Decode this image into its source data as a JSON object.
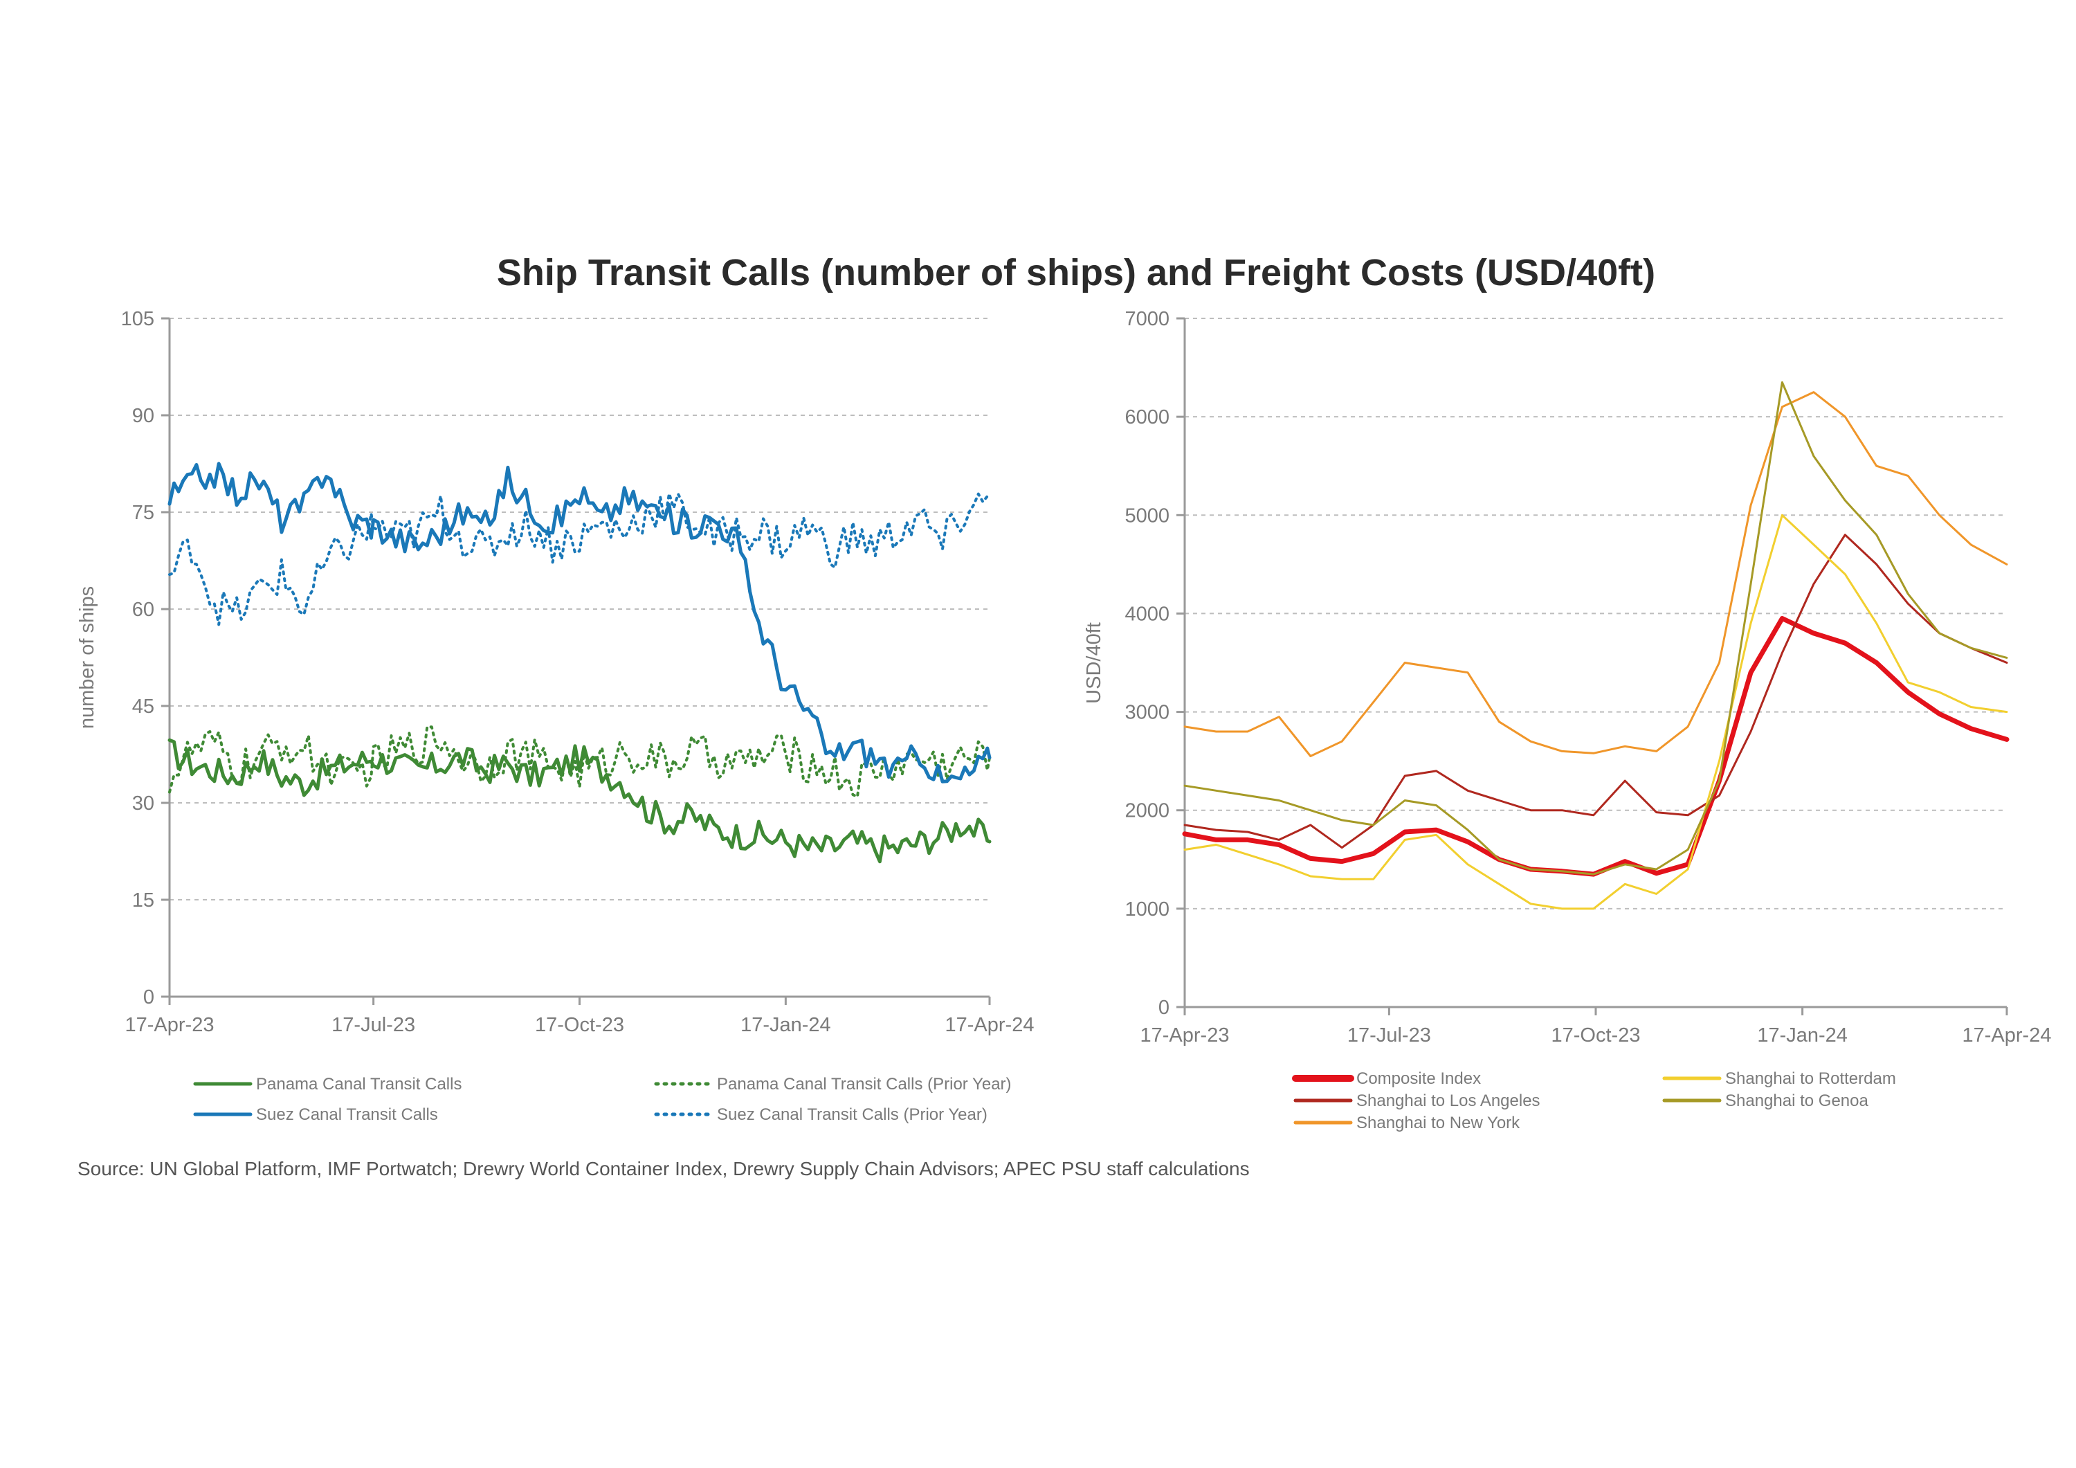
{
  "title": "Ship Transit Calls (number of ships) and Freight Costs (USD/40ft)",
  "source": "Source: UN Global Platform, IMF Portwatch; Drewry World Container Index, Drewry Supply Chain Advisors; APEC PSU staff calculations",
  "colors": {
    "panama": "#3f8a35",
    "suez": "#1a78b8",
    "composite": "#e3121b",
    "los_angeles": "#b0281f",
    "new_york": "#f0962a",
    "rotterdam": "#f2cf2f",
    "genoa": "#a69a26"
  },
  "chart_data": [
    {
      "type": "line",
      "ylabel": "number of ships",
      "ylim": [
        0,
        105
      ],
      "yticks": [
        "0",
        "15",
        "30",
        "45",
        "60",
        "75",
        "90",
        "105"
      ],
      "xlim": [
        "2023-04-17",
        "2024-04-17"
      ],
      "xticks": [
        "17-Apr-23",
        "17-Jul-23",
        "17-Oct-23",
        "17-Jan-24",
        "17-Apr-24"
      ],
      "grid": true,
      "legend_position": "bottom",
      "series": [
        {
          "name": "Panama Canal Transit Calls",
          "color_key": "panama",
          "style": "solid",
          "x": [
            "2023-04-17",
            "2023-04-27",
            "2023-05-07",
            "2023-05-17",
            "2023-05-27",
            "2023-06-06",
            "2023-06-16",
            "2023-06-26",
            "2023-07-06",
            "2023-07-17",
            "2023-07-27",
            "2023-08-06",
            "2023-08-16",
            "2023-08-26",
            "2023-09-05",
            "2023-09-15",
            "2023-09-25",
            "2023-10-05",
            "2023-10-17",
            "2023-10-27",
            "2023-11-06",
            "2023-11-16",
            "2023-11-26",
            "2023-12-06",
            "2023-12-16",
            "2023-12-26",
            "2024-01-05",
            "2024-01-17",
            "2024-01-27",
            "2024-02-06",
            "2024-02-16",
            "2024-02-26",
            "2024-03-07",
            "2024-03-17",
            "2024-03-27",
            "2024-04-06",
            "2024-04-17"
          ],
          "values": [
            38,
            36,
            35,
            34,
            37,
            34,
            33,
            35,
            36,
            37,
            36,
            35,
            36,
            37,
            35,
            36,
            34,
            35,
            37,
            35,
            33,
            29,
            27,
            28,
            26,
            25,
            25,
            24,
            23,
            23,
            24,
            23,
            23,
            24,
            25,
            27,
            24
          ]
        },
        {
          "name": "Panama Canal Transit Calls (Prior Year)",
          "color_key": "panama",
          "style": "dotted",
          "x": [
            "2023-04-17",
            "2023-04-27",
            "2023-05-07",
            "2023-05-17",
            "2023-05-27",
            "2023-06-06",
            "2023-06-16",
            "2023-06-26",
            "2023-07-06",
            "2023-07-17",
            "2023-07-27",
            "2023-08-06",
            "2023-08-16",
            "2023-08-26",
            "2023-09-05",
            "2023-09-15",
            "2023-09-25",
            "2023-10-05",
            "2023-10-17",
            "2023-10-27",
            "2023-11-06",
            "2023-11-16",
            "2023-11-26",
            "2023-12-06",
            "2023-12-16",
            "2023-12-26",
            "2024-01-05",
            "2024-01-17",
            "2024-01-27",
            "2024-02-06",
            "2024-02-16",
            "2024-02-26",
            "2024-03-07",
            "2024-03-17",
            "2024-03-27",
            "2024-04-06",
            "2024-04-17"
          ],
          "values": [
            34,
            38,
            39,
            35,
            37,
            39,
            38,
            36,
            34,
            36,
            38,
            39,
            40,
            37,
            36,
            38,
            37,
            36,
            35,
            36,
            38,
            37,
            36,
            38,
            37,
            36,
            37,
            38,
            36,
            35,
            33,
            35,
            36,
            37,
            36,
            37,
            37
          ]
        },
        {
          "name": "Suez Canal Transit Calls",
          "color_key": "suez",
          "style": "solid",
          "x": [
            "2023-04-17",
            "2023-04-27",
            "2023-05-07",
            "2023-05-17",
            "2023-05-27",
            "2023-06-06",
            "2023-06-16",
            "2023-06-26",
            "2023-07-06",
            "2023-07-17",
            "2023-07-27",
            "2023-08-06",
            "2023-08-16",
            "2023-08-26",
            "2023-09-05",
            "2023-09-15",
            "2023-09-25",
            "2023-10-05",
            "2023-10-17",
            "2023-10-27",
            "2023-11-06",
            "2023-11-16",
            "2023-11-26",
            "2023-12-06",
            "2023-12-16",
            "2023-12-26",
            "2024-01-05",
            "2024-01-17",
            "2024-01-27",
            "2024-02-06",
            "2024-02-16",
            "2024-02-26",
            "2024-03-07",
            "2024-03-17",
            "2024-03-27",
            "2024-04-06",
            "2024-04-17"
          ],
          "values": [
            77,
            80,
            81,
            78,
            80,
            74,
            76,
            82,
            74,
            73,
            71,
            70,
            72,
            75,
            73,
            80,
            76,
            73,
            78,
            74,
            77,
            76,
            74,
            73,
            74,
            71,
            58,
            48,
            44,
            37,
            39,
            37,
            35,
            38,
            33,
            34,
            37
          ]
        },
        {
          "name": "Suez Canal Transit Calls (Prior Year)",
          "color_key": "suez",
          "style": "dotted",
          "x": [
            "2023-04-17",
            "2023-04-27",
            "2023-05-07",
            "2023-05-17",
            "2023-05-27",
            "2023-06-06",
            "2023-06-16",
            "2023-06-26",
            "2023-07-06",
            "2023-07-17",
            "2023-07-27",
            "2023-08-06",
            "2023-08-16",
            "2023-08-26",
            "2023-09-05",
            "2023-09-15",
            "2023-09-25",
            "2023-10-05",
            "2023-10-17",
            "2023-10-27",
            "2023-11-06",
            "2023-11-16",
            "2023-11-26",
            "2023-12-06",
            "2023-12-16",
            "2023-12-26",
            "2024-01-05",
            "2024-01-17",
            "2024-01-27",
            "2024-02-06",
            "2024-02-16",
            "2024-02-26",
            "2024-03-07",
            "2024-03-17",
            "2024-03-27",
            "2024-04-06",
            "2024-04-17"
          ],
          "values": [
            65,
            70,
            61,
            59,
            63,
            65,
            60,
            67,
            70,
            73,
            71,
            72,
            75,
            71,
            69,
            72,
            73,
            70,
            71,
            73,
            72,
            75,
            76,
            74,
            71,
            72,
            72,
            70,
            73,
            69,
            71,
            70,
            72,
            74,
            70,
            75,
            77
          ]
        }
      ]
    },
    {
      "type": "line",
      "ylabel": "USD/40ft",
      "ylim": [
        0,
        7000
      ],
      "yticks": [
        "0",
        "1000",
        "2000",
        "3000",
        "4000",
        "5000",
        "6000",
        "7000"
      ],
      "xlim": [
        "2023-04-17",
        "2024-04-17"
      ],
      "xticks": [
        "17-Apr-23",
        "17-Jul-23",
        "17-Oct-23",
        "17-Jan-24",
        "17-Apr-24"
      ],
      "grid": true,
      "legend_position": "bottom",
      "series": [
        {
          "name": "Composite Index",
          "color_key": "composite",
          "width": 7,
          "x": [
            "2023-04-17",
            "2023-05-01",
            "2023-05-15",
            "2023-05-29",
            "2023-06-12",
            "2023-06-26",
            "2023-07-10",
            "2023-07-24",
            "2023-08-07",
            "2023-08-21",
            "2023-09-04",
            "2023-09-18",
            "2023-10-02",
            "2023-10-16",
            "2023-10-30",
            "2023-11-13",
            "2023-11-27",
            "2023-12-11",
            "2023-12-25",
            "2024-01-08",
            "2024-01-22",
            "2024-02-05",
            "2024-02-19",
            "2024-03-04",
            "2024-03-18",
            "2024-04-01",
            "2024-04-17"
          ],
          "values": [
            1760,
            1700,
            1700,
            1650,
            1510,
            1480,
            1560,
            1780,
            1800,
            1680,
            1500,
            1400,
            1380,
            1350,
            1480,
            1360,
            1450,
            2300,
            3400,
            3950,
            3800,
            3700,
            3500,
            3200,
            2980,
            2830,
            2720
          ]
        },
        {
          "name": "Shanghai to Los Angeles",
          "color_key": "los_angeles",
          "width": 3,
          "x": [
            "2023-04-17",
            "2023-05-01",
            "2023-05-15",
            "2023-05-29",
            "2023-06-12",
            "2023-06-26",
            "2023-07-10",
            "2023-07-24",
            "2023-08-07",
            "2023-08-21",
            "2023-09-04",
            "2023-09-18",
            "2023-10-02",
            "2023-10-16",
            "2023-10-30",
            "2023-11-13",
            "2023-11-27",
            "2023-12-11",
            "2023-12-25",
            "2024-01-08",
            "2024-01-22",
            "2024-02-05",
            "2024-02-19",
            "2024-03-04",
            "2024-03-18",
            "2024-04-01",
            "2024-04-17"
          ],
          "values": [
            1850,
            1800,
            1780,
            1700,
            1850,
            1620,
            1850,
            2350,
            2400,
            2200,
            2100,
            2000,
            2000,
            1950,
            2300,
            1980,
            1950,
            2150,
            2800,
            3600,
            4300,
            4800,
            4500,
            4100,
            3800,
            3650,
            3500
          ]
        },
        {
          "name": "Shanghai to New York",
          "color_key": "new_york",
          "width": 3,
          "x": [
            "2023-04-17",
            "2023-05-01",
            "2023-05-15",
            "2023-05-29",
            "2023-06-12",
            "2023-06-26",
            "2023-07-10",
            "2023-07-24",
            "2023-08-07",
            "2023-08-21",
            "2023-09-04",
            "2023-09-18",
            "2023-10-02",
            "2023-10-16",
            "2023-10-30",
            "2023-11-13",
            "2023-11-27",
            "2023-12-11",
            "2023-12-25",
            "2024-01-08",
            "2024-01-22",
            "2024-02-05",
            "2024-02-19",
            "2024-03-04",
            "2024-03-18",
            "2024-04-01",
            "2024-04-17"
          ],
          "values": [
            2850,
            2800,
            2800,
            2950,
            2550,
            2700,
            3100,
            3500,
            3450,
            3400,
            2900,
            2700,
            2600,
            2580,
            2650,
            2600,
            2850,
            3500,
            5100,
            6100,
            6250,
            6000,
            5500,
            5400,
            5000,
            4700,
            4500
          ]
        },
        {
          "name": "Shanghai to Rotterdam",
          "color_key": "rotterdam",
          "width": 3,
          "x": [
            "2023-04-17",
            "2023-05-01",
            "2023-05-15",
            "2023-05-29",
            "2023-06-12",
            "2023-06-26",
            "2023-07-10",
            "2023-07-24",
            "2023-08-07",
            "2023-08-21",
            "2023-09-04",
            "2023-09-18",
            "2023-10-02",
            "2023-10-16",
            "2023-10-30",
            "2023-11-13",
            "2023-11-27",
            "2023-12-11",
            "2023-12-25",
            "2024-01-08",
            "2024-01-22",
            "2024-02-05",
            "2024-02-19",
            "2024-03-04",
            "2024-03-18",
            "2024-04-01",
            "2024-04-17"
          ],
          "values": [
            1600,
            1650,
            1550,
            1450,
            1330,
            1300,
            1300,
            1700,
            1750,
            1450,
            1250,
            1050,
            1000,
            1000,
            1250,
            1150,
            1400,
            2500,
            3900,
            5000,
            4700,
            4400,
            3900,
            3300,
            3200,
            3050,
            3000
          ]
        },
        {
          "name": "Shanghai to Genoa",
          "color_key": "genoa",
          "width": 3,
          "x": [
            "2023-04-17",
            "2023-05-01",
            "2023-05-15",
            "2023-05-29",
            "2023-06-12",
            "2023-06-26",
            "2023-07-10",
            "2023-07-24",
            "2023-08-07",
            "2023-08-21",
            "2023-09-04",
            "2023-09-18",
            "2023-10-02",
            "2023-10-16",
            "2023-10-30",
            "2023-11-13",
            "2023-11-27",
            "2023-12-11",
            "2023-12-25",
            "2024-01-08",
            "2024-01-22",
            "2024-02-05",
            "2024-02-19",
            "2024-03-04",
            "2024-03-18",
            "2024-04-01",
            "2024-04-17"
          ],
          "values": [
            2250,
            2200,
            2150,
            2100,
            2000,
            1900,
            1850,
            2100,
            2050,
            1800,
            1500,
            1400,
            1380,
            1350,
            1450,
            1400,
            1600,
            2300,
            4300,
            6350,
            5600,
            5150,
            4800,
            4200,
            3800,
            3650,
            3550
          ]
        }
      ]
    }
  ],
  "legends": {
    "left": [
      {
        "label": "Panama Canal Transit Calls",
        "color_key": "panama",
        "style": "solid"
      },
      {
        "label": "Panama Canal Transit Calls (Prior Year)",
        "color_key": "panama",
        "style": "dotted"
      },
      {
        "label": "Suez Canal Transit Calls",
        "color_key": "suez",
        "style": "solid"
      },
      {
        "label": "Suez Canal Transit Calls (Prior Year)",
        "color_key": "suez",
        "style": "dotted"
      }
    ],
    "right": [
      {
        "label": "Composite Index",
        "color_key": "composite",
        "style": "thick"
      },
      {
        "label": "Shanghai to Rotterdam",
        "color_key": "rotterdam",
        "style": "solid"
      },
      {
        "label": "Shanghai to Los Angeles",
        "color_key": "los_angeles",
        "style": "solid"
      },
      {
        "label": "Shanghai to Genoa",
        "color_key": "genoa",
        "style": "solid"
      },
      {
        "label": "Shanghai to New York",
        "color_key": "new_york",
        "style": "solid"
      }
    ]
  }
}
